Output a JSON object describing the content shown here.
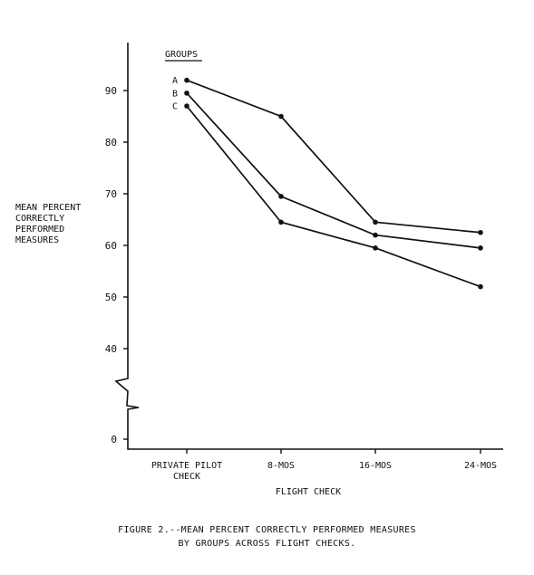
{
  "chart_data": {
    "type": "line",
    "xlabel": "FLIGHT CHECK",
    "ylabel_lines": [
      "MEAN PERCENT",
      "CORRECTLY",
      "PERFORMED",
      "MEASURES"
    ],
    "categories": [
      [
        "PRIVATE PILOT",
        "CHECK"
      ],
      [
        "8-MOS"
      ],
      [
        "16-MOS"
      ],
      [
        "24-MOS"
      ]
    ],
    "y_ticks": [
      0,
      40,
      50,
      60,
      70,
      80,
      90
    ],
    "axis_break": "between 0 and 40",
    "legend_title": "GROUPS",
    "series": [
      {
        "name": "A",
        "values": [
          92,
          85,
          64.5,
          62.5
        ]
      },
      {
        "name": "B",
        "values": [
          89.5,
          69.5,
          62,
          59.5
        ]
      },
      {
        "name": "C",
        "values": [
          87,
          64.5,
          59.5,
          52
        ]
      }
    ],
    "caption": [
      "FIGURE 2.--MEAN PERCENT CORRECTLY PERFORMED MEASURES",
      "BY GROUPS ACROSS FLIGHT CHECKS."
    ]
  }
}
